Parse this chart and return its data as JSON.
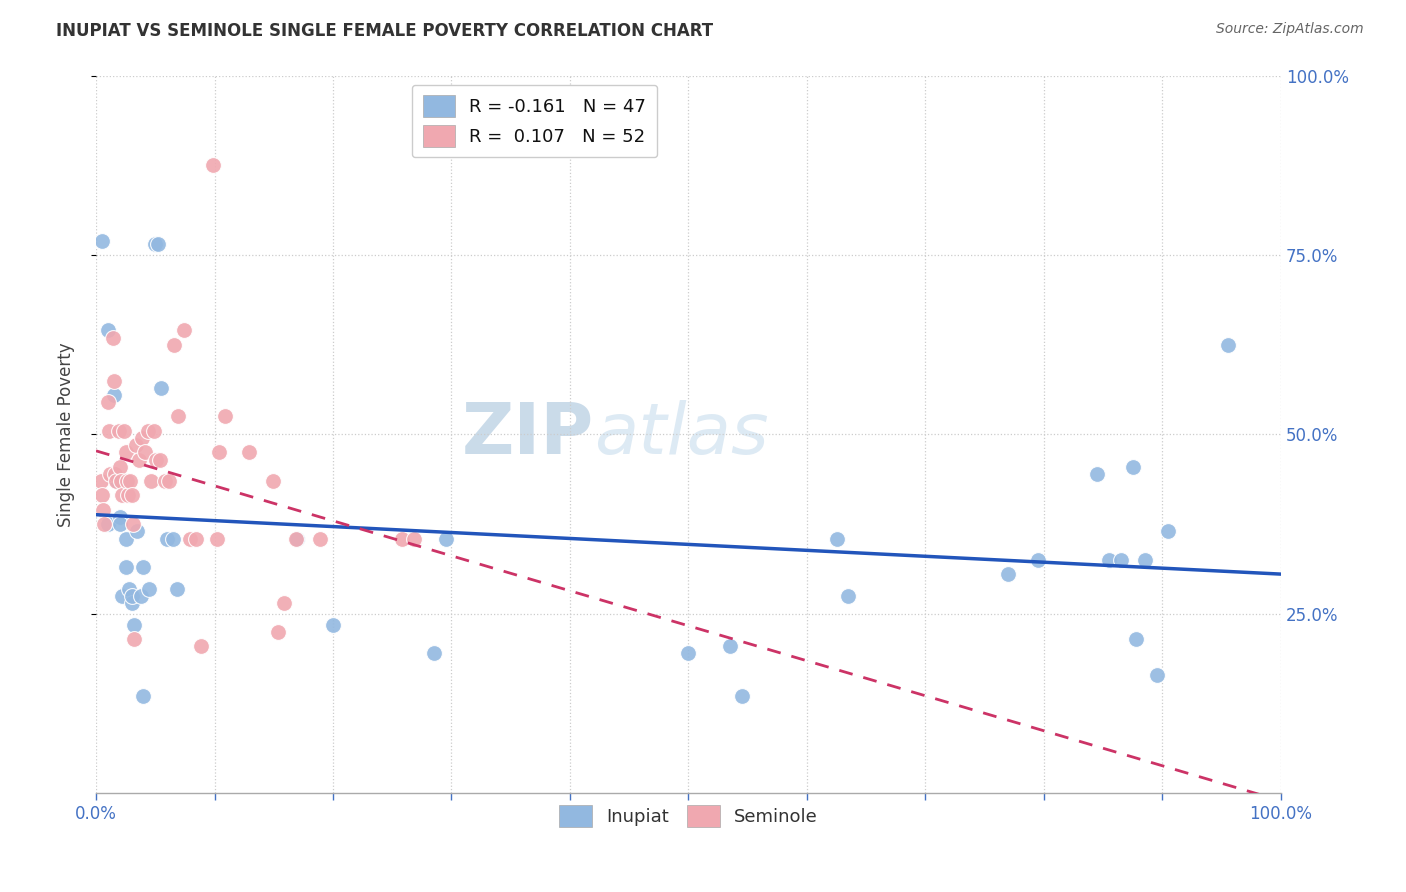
{
  "title": "INUPIAT VS SEMINOLE SINGLE FEMALE POVERTY CORRELATION CHART",
  "source": "Source: ZipAtlas.com",
  "ylabel": "Single Female Poverty",
  "inupiat_color": "#92b8e0",
  "seminole_color": "#f0a8b0",
  "inupiat_line_color": "#2255bb",
  "seminole_line_color": "#cc3366",
  "inupiat_R": -0.161,
  "inupiat_N": 47,
  "seminole_R": 0.107,
  "seminole_N": 52,
  "watermark_zip": "ZIP",
  "watermark_atlas": "atlas",
  "inupiat_x": [
    0.005,
    0.01,
    0.01,
    0.015,
    0.015,
    0.018,
    0.02,
    0.02,
    0.022,
    0.025,
    0.025,
    0.025,
    0.028,
    0.03,
    0.03,
    0.032,
    0.035,
    0.038,
    0.04,
    0.04,
    0.045,
    0.05,
    0.052,
    0.055,
    0.06,
    0.065,
    0.068,
    0.17,
    0.2,
    0.285,
    0.295,
    0.5,
    0.535,
    0.545,
    0.625,
    0.635,
    0.77,
    0.795,
    0.845,
    0.855,
    0.865,
    0.875,
    0.878,
    0.885,
    0.895,
    0.905,
    0.955
  ],
  "inupiat_y": [
    0.77,
    0.645,
    0.375,
    0.555,
    0.445,
    0.435,
    0.385,
    0.375,
    0.275,
    0.435,
    0.355,
    0.315,
    0.285,
    0.265,
    0.275,
    0.235,
    0.365,
    0.275,
    0.315,
    0.135,
    0.285,
    0.765,
    0.765,
    0.565,
    0.355,
    0.355,
    0.285,
    0.355,
    0.235,
    0.195,
    0.355,
    0.195,
    0.205,
    0.135,
    0.355,
    0.275,
    0.305,
    0.325,
    0.445,
    0.325,
    0.325,
    0.455,
    0.215,
    0.325,
    0.165,
    0.365,
    0.625
  ],
  "seminole_x": [
    0.004,
    0.005,
    0.006,
    0.007,
    0.01,
    0.011,
    0.012,
    0.014,
    0.015,
    0.016,
    0.017,
    0.019,
    0.02,
    0.021,
    0.022,
    0.024,
    0.025,
    0.026,
    0.027,
    0.029,
    0.03,
    0.031,
    0.032,
    0.034,
    0.036,
    0.039,
    0.041,
    0.044,
    0.046,
    0.049,
    0.051,
    0.054,
    0.058,
    0.062,
    0.066,
    0.069,
    0.074,
    0.079,
    0.084,
    0.089,
    0.099,
    0.102,
    0.104,
    0.109,
    0.129,
    0.149,
    0.154,
    0.159,
    0.169,
    0.189,
    0.258,
    0.268
  ],
  "seminole_y": [
    0.435,
    0.415,
    0.395,
    0.375,
    0.545,
    0.505,
    0.445,
    0.635,
    0.575,
    0.445,
    0.435,
    0.505,
    0.455,
    0.435,
    0.415,
    0.505,
    0.475,
    0.435,
    0.415,
    0.435,
    0.415,
    0.375,
    0.215,
    0.485,
    0.465,
    0.495,
    0.475,
    0.505,
    0.435,
    0.505,
    0.465,
    0.465,
    0.435,
    0.435,
    0.625,
    0.525,
    0.645,
    0.355,
    0.355,
    0.205,
    0.875,
    0.355,
    0.475,
    0.525,
    0.475,
    0.435,
    0.225,
    0.265,
    0.355,
    0.355,
    0.355,
    0.355
  ],
  "xlim": [
    0.0,
    1.0
  ],
  "ylim": [
    0.0,
    1.0
  ],
  "xtick_positions": [
    0.0,
    0.1,
    0.2,
    0.3,
    0.4,
    0.5,
    0.6,
    0.7,
    0.8,
    0.9,
    1.0
  ],
  "ytick_positions": [
    0.25,
    0.5,
    0.75,
    1.0
  ],
  "right_ytick_color": "#4472c4"
}
